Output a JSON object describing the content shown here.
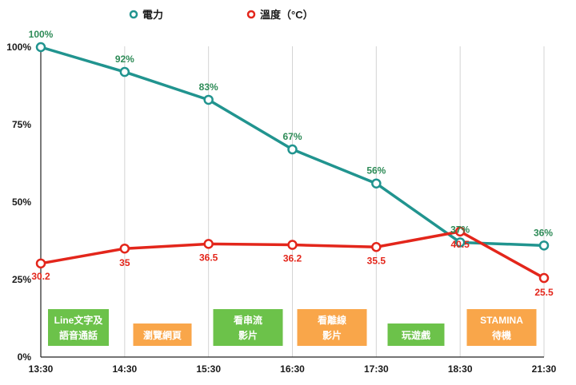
{
  "chart_data": {
    "type": "line",
    "x": [
      "13:30",
      "14:30",
      "15:30",
      "16:30",
      "17:30",
      "18:30",
      "21:30"
    ],
    "y_ticks": [
      "0%",
      "25%",
      "50%",
      "75%",
      "100%"
    ],
    "ylim": [
      0,
      100
    ],
    "grid": "vertical",
    "legend_position": "top-center",
    "series": [
      {
        "name": "電力",
        "color": "#21948f",
        "label_color": "#2e8b57",
        "values": [
          100,
          92,
          83,
          67,
          56,
          37,
          36
        ],
        "labels": [
          "100%",
          "92%",
          "83%",
          "67%",
          "56%",
          "37%",
          "36%"
        ]
      },
      {
        "name": "溫度（°C）",
        "color": "#e3261b",
        "label_color": "#e3261b",
        "values": [
          30.2,
          35,
          36.5,
          36.2,
          35.5,
          40.5,
          25.5
        ],
        "labels": [
          "30.2",
          "35",
          "36.5",
          "36.2",
          "35.5",
          "40.5",
          "25.5"
        ]
      }
    ],
    "activities": [
      {
        "lines": [
          "Line文字及",
          "語音通話"
        ],
        "color": "#6cc24a"
      },
      {
        "lines": [
          "瀏覽網頁"
        ],
        "color": "#f9a64a"
      },
      {
        "lines": [
          "看串流",
          "影片"
        ],
        "color": "#6cc24a"
      },
      {
        "lines": [
          "看離線",
          "影片"
        ],
        "color": "#f9a64a"
      },
      {
        "lines": [
          "玩遊戲"
        ],
        "color": "#6cc24a"
      },
      {
        "lines": [
          "STAMINA",
          "待機"
        ],
        "color": "#f9a64a"
      }
    ]
  }
}
